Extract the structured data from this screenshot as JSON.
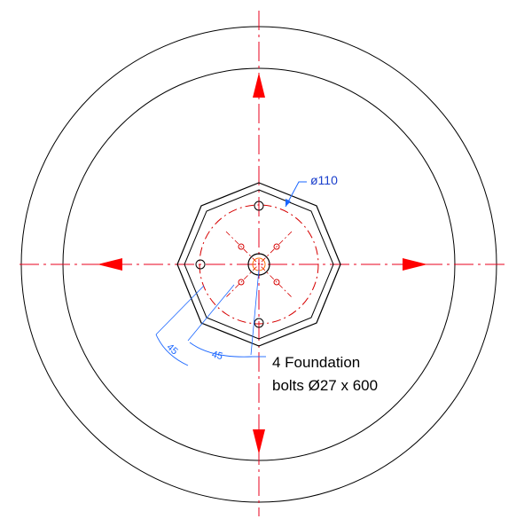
{
  "drawing": {
    "diameter_label": "ø110",
    "angle_label_1": "45",
    "angle_label_2": "45",
    "note": {
      "line1": "4 Foundation",
      "line2": "bolts Ø27 x 600"
    }
  },
  "colors": {
    "outline": "#000000",
    "centerline": "#e8001c",
    "arrow": "#ff0000",
    "dimension": "#1a66ff",
    "bolt_circle": "#d60000"
  }
}
